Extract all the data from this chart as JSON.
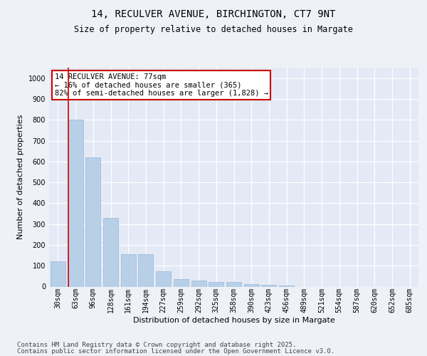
{
  "title1": "14, RECULVER AVENUE, BIRCHINGTON, CT7 9NT",
  "title2": "Size of property relative to detached houses in Margate",
  "xlabel": "Distribution of detached houses by size in Margate",
  "ylabel": "Number of detached properties",
  "categories": [
    "30sqm",
    "63sqm",
    "96sqm",
    "128sqm",
    "161sqm",
    "194sqm",
    "227sqm",
    "259sqm",
    "292sqm",
    "325sqm",
    "358sqm",
    "390sqm",
    "423sqm",
    "456sqm",
    "489sqm",
    "521sqm",
    "554sqm",
    "587sqm",
    "620sqm",
    "652sqm",
    "685sqm"
  ],
  "values": [
    120,
    800,
    620,
    330,
    155,
    155,
    75,
    35,
    30,
    22,
    22,
    12,
    10,
    5,
    0,
    0,
    0,
    0,
    0,
    0,
    0
  ],
  "bar_color": "#b8cfe8",
  "bar_edge_color": "#9ab8d8",
  "vline_color": "#cc0000",
  "annotation_text": "14 RECULVER AVENUE: 77sqm\n← 16% of detached houses are smaller (365)\n82% of semi-detached houses are larger (1,828) →",
  "annotation_box_color": "#ffffff",
  "annotation_box_edge": "#cc0000",
  "ylim": [
    0,
    1050
  ],
  "yticks": [
    0,
    100,
    200,
    300,
    400,
    500,
    600,
    700,
    800,
    900,
    1000
  ],
  "footer1": "Contains HM Land Registry data © Crown copyright and database right 2025.",
  "footer2": "Contains public sector information licensed under the Open Government Licence v3.0.",
  "bg_color": "#eef2f8",
  "plot_bg_color": "#e4eaf5",
  "grid_color": "#ffffff",
  "title1_fontsize": 10,
  "title2_fontsize": 8.5,
  "tick_fontsize": 7,
  "label_fontsize": 8,
  "footer_fontsize": 6.5
}
